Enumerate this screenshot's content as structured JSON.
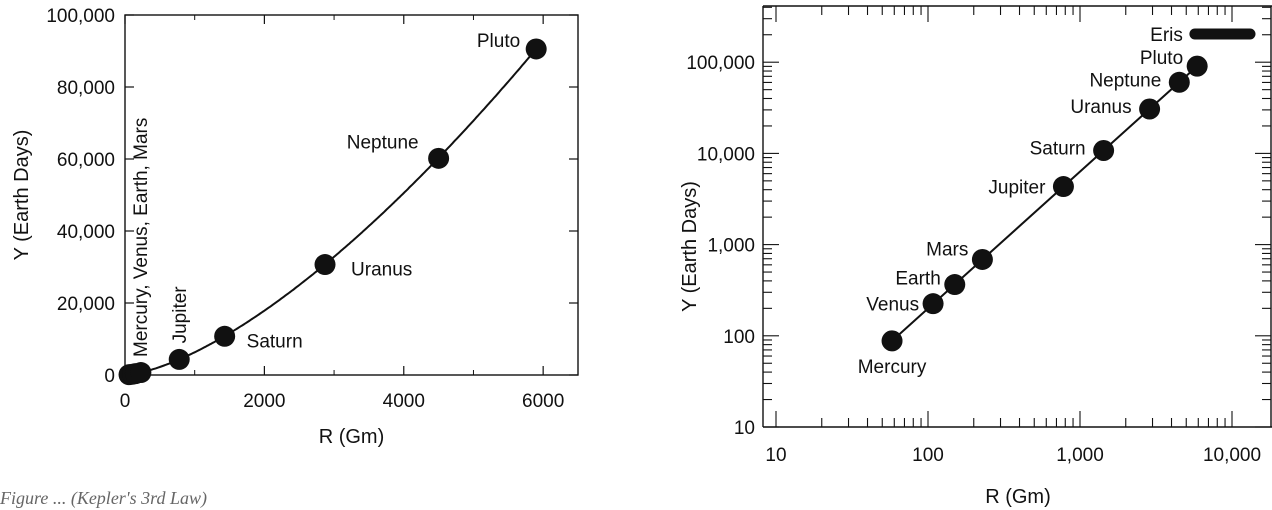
{
  "chart_data": [
    {
      "type": "scatter",
      "title": "",
      "xlabel": "R (Gm)",
      "ylabel": "Y (Earth Days)",
      "xlim": [
        0,
        6500
      ],
      "ylim": [
        0,
        100000
      ],
      "x_ticks": [
        0,
        2000,
        4000,
        6000
      ],
      "y_ticks": [
        0,
        20000,
        40000,
        60000,
        80000,
        100000
      ],
      "x_tick_labels": [
        "0",
        "2000",
        "4000",
        "6000"
      ],
      "y_tick_labels": [
        "0",
        "20,000",
        "40,000",
        "60,000",
        "80,000",
        "100,000"
      ],
      "fit_curve": "Y = k R^1.5",
      "points": [
        {
          "name": "Mercury",
          "x": 58,
          "y": 88
        },
        {
          "name": "Venus",
          "x": 108,
          "y": 225
        },
        {
          "name": "Earth",
          "x": 150,
          "y": 365
        },
        {
          "name": "Mars",
          "x": 228,
          "y": 687
        },
        {
          "name": "Jupiter",
          "x": 778,
          "y": 4333
        },
        {
          "name": "Saturn",
          "x": 1430,
          "y": 10759
        },
        {
          "name": "Uranus",
          "x": 2870,
          "y": 30687
        },
        {
          "name": "Neptune",
          "x": 4500,
          "y": 60190
        },
        {
          "name": "Pluto",
          "x": 5900,
          "y": 90560
        }
      ],
      "annotations": [
        {
          "text": "Mercury, Venus, Earth, Mars",
          "orientation": "vertical"
        },
        {
          "text": "Jupiter",
          "orientation": "vertical"
        },
        {
          "text": "Saturn"
        },
        {
          "text": "Uranus"
        },
        {
          "text": "Neptune"
        },
        {
          "text": "Pluto"
        }
      ]
    },
    {
      "type": "scatter",
      "title": "",
      "xlabel": "R (Gm)",
      "ylabel": "Y (Earth Days)",
      "x_scale": "log",
      "y_scale": "log",
      "xlim": [
        10,
        15000
      ],
      "ylim": [
        10,
        400000
      ],
      "x_ticks": [
        10,
        100,
        1000,
        10000
      ],
      "y_ticks": [
        10,
        100,
        1000,
        10000,
        100000
      ],
      "x_tick_labels": [
        "10",
        "100",
        "1,000",
        "10,000"
      ],
      "y_tick_labels": [
        "10",
        "100",
        "1,000",
        "10,000",
        "100,000"
      ],
      "points": [
        {
          "name": "Mercury",
          "x": 58,
          "y": 88
        },
        {
          "name": "Venus",
          "x": 108,
          "y": 225
        },
        {
          "name": "Earth",
          "x": 150,
          "y": 365
        },
        {
          "name": "Mars",
          "x": 228,
          "y": 687
        },
        {
          "name": "Jupiter",
          "x": 778,
          "y": 4333
        },
        {
          "name": "Saturn",
          "x": 1430,
          "y": 10759
        },
        {
          "name": "Uranus",
          "x": 2870,
          "y": 30687
        },
        {
          "name": "Neptune",
          "x": 4500,
          "y": 60190
        },
        {
          "name": "Pluto",
          "x": 5900,
          "y": 90560
        }
      ],
      "range_marks": [
        {
          "name": "Eris",
          "x_min": 5700,
          "x_max": 14600,
          "y": 203830
        }
      ]
    }
  ],
  "caption": "Figure ... (Kepler's 3rd Law)"
}
